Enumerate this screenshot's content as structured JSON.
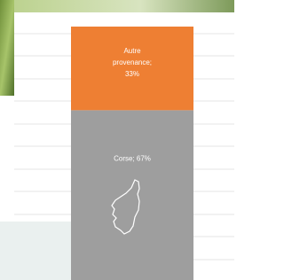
{
  "chart_data": {
    "type": "bar",
    "stacked": true,
    "ylim": [
      0,
      100
    ],
    "series": [
      {
        "color": "#9e9e9e",
        "values": [
          67
        ],
        "value_labels": [
          "Corse; 67%"
        ]
      },
      {
        "color": "#ee7f33",
        "values": [
          33
        ],
        "value_labels": [
          "Autre provenance; 33%"
        ]
      }
    ]
  }
}
